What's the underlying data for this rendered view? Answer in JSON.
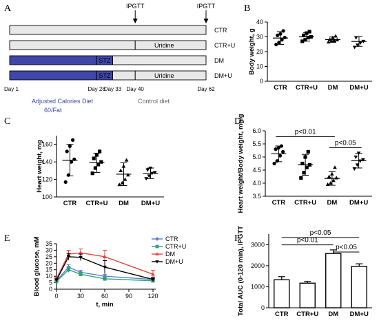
{
  "panels": {
    "A": {
      "letter": "A",
      "ipgtt_labels": [
        "IPGTT",
        "IPGTT"
      ],
      "rows": [
        {
          "name": "CTR",
          "segments": [
            {
              "from": 1,
              "to": 62,
              "color": "#e8e8e8",
              "label": ""
            }
          ]
        },
        {
          "name": "CTR+U",
          "segments": [
            {
              "from": 1,
              "to": 40,
              "color": "#e8e8e8",
              "label": ""
            },
            {
              "from": 40,
              "to": 62,
              "color": "#e8e8e8",
              "label": "Uridine"
            }
          ]
        },
        {
          "name": "DM",
          "segments": [
            {
              "from": 1,
              "to": 28,
              "color": "#3f47a8",
              "label": ""
            },
            {
              "from": 28,
              "to": 33,
              "color": "#3f47a8",
              "label": "STZ"
            },
            {
              "from": 33,
              "to": 62,
              "color": "#e8e8e8",
              "label": ""
            }
          ]
        },
        {
          "name": "DM+U",
          "segments": [
            {
              "from": 1,
              "to": 28,
              "color": "#3f47a8",
              "label": ""
            },
            {
              "from": 28,
              "to": 33,
              "color": "#3f47a8",
              "label": "STZ"
            },
            {
              "from": 33,
              "to": 40,
              "color": "#e8e8e8",
              "label": ""
            },
            {
              "from": 40,
              "to": 62,
              "color": "#e8e8e8",
              "label": "Uridine"
            }
          ]
        }
      ],
      "day_labels": [
        "Day 1",
        "Day 28",
        "Day 33",
        "Day 40",
        "Day 62"
      ],
      "diet_high": "Adjusted Calories Diet",
      "diet_high_2": "60/Fat",
      "diet_control": "Control diet"
    },
    "B": {
      "letter": "B"
    },
    "C": {
      "letter": "C"
    },
    "D": {
      "letter": "D"
    },
    "E": {
      "letter": "E"
    },
    "F": {
      "letter": "F"
    }
  },
  "chart_data": [
    {
      "id": "B",
      "type": "scatter",
      "ylabel": "Body weight, g",
      "categories": [
        "CTR",
        "CTR+U",
        "DM",
        "DM+U"
      ],
      "ylim": [
        0,
        40
      ],
      "yticks": [
        0,
        10,
        20,
        30,
        40
      ],
      "means": [
        29.2,
        30.0,
        28.1,
        26.9
      ],
      "sd": [
        4.3,
        2.9,
        1.8,
        3.3
      ],
      "points": [
        [
          24.8,
          26.2,
          28.0,
          29.5,
          31.0,
          32.0,
          34.0
        ],
        [
          27.0,
          28.0,
          29.5,
          30.0,
          31.0,
          32.5,
          33.5
        ],
        [
          26.5,
          27.0,
          27.5,
          28.0,
          28.2,
          29.5,
          30.5
        ],
        [
          23.0,
          24.5,
          26.0,
          27.0,
          29.5
        ]
      ]
    },
    {
      "id": "C",
      "type": "scatter",
      "ylabel": "Heart weight, mg",
      "categories": [
        "CTR",
        "CTR+U",
        "DM",
        "DM+U"
      ],
      "ylim": [
        100,
        170
      ],
      "yticks": [
        100,
        120,
        140,
        160
      ],
      "means": [
        142,
        139,
        126,
        127
      ],
      "sd": [
        18,
        11,
        13,
        6
      ],
      "points": [
        [
          117,
          125,
          140,
          143,
          152,
          158,
          165
        ],
        [
          127,
          133,
          137,
          140,
          144,
          148,
          152
        ],
        [
          114,
          116,
          120,
          125,
          130,
          135,
          142
        ],
        [
          121,
          124,
          127,
          128,
          131,
          133
        ]
      ]
    },
    {
      "id": "D",
      "type": "scatter",
      "ylabel": "Heart weight/Body weight, mg/g",
      "categories": [
        "CTR",
        "CTR+U",
        "DM",
        "DM+U"
      ],
      "ylim": [
        3.5,
        6.0
      ],
      "yticks": [
        3.5,
        4.0,
        4.5,
        5.0,
        5.5,
        6.0
      ],
      "means": [
        5.12,
        4.7,
        4.18,
        4.86
      ],
      "sd": [
        0.3,
        0.4,
        0.26,
        0.28
      ],
      "points": [
        [
          4.75,
          4.85,
          5.05,
          5.2,
          5.3,
          5.35,
          5.42
        ],
        [
          4.2,
          4.4,
          4.6,
          4.7,
          4.75,
          5.0,
          5.2
        ],
        [
          3.95,
          4.0,
          4.1,
          4.2,
          4.25,
          4.35,
          4.6
        ],
        [
          4.55,
          4.7,
          4.85,
          4.9,
          5.0,
          5.15
        ]
      ],
      "annotations": [
        {
          "text": "p<0.01",
          "from": 0,
          "to": 2,
          "y": 5.78
        },
        {
          "text": "p<0.05",
          "from": 2,
          "to": 3,
          "y": 5.36
        }
      ]
    },
    {
      "id": "E",
      "type": "line",
      "xlabel": "t, min",
      "ylabel": "Blood glucose, mM",
      "x": [
        0,
        15,
        30,
        60,
        120
      ],
      "xlim": [
        0,
        120
      ],
      "xticks": [
        0,
        30,
        60,
        90,
        120
      ],
      "ylim": [
        0,
        35
      ],
      "yticks": [
        0,
        5,
        10,
        15,
        20,
        25,
        30,
        35
      ],
      "series": [
        {
          "name": "CTR",
          "color": "#5b7ec9",
          "marker": "diamond",
          "values": [
            6.5,
            17.0,
            13.0,
            10.0,
            7.5
          ],
          "err": [
            1.0,
            2.0,
            1.5,
            1.5,
            1.0
          ]
        },
        {
          "name": "CTR+U",
          "color": "#2ea37a",
          "marker": "square",
          "values": [
            6.0,
            15.0,
            11.5,
            8.0,
            6.5
          ],
          "err": [
            1.0,
            2.0,
            1.5,
            1.5,
            1.0
          ]
        },
        {
          "name": "DM",
          "color": "#e8413c",
          "marker": "triangle",
          "values": [
            8.0,
            27.0,
            28.0,
            25.0,
            11.5
          ],
          "err": [
            1.5,
            3.0,
            3.0,
            5.0,
            3.0
          ]
        },
        {
          "name": "DM+U",
          "color": "#000000",
          "marker": "triangle-down",
          "values": [
            7.0,
            25.0,
            24.5,
            17.0,
            7.5
          ],
          "err": [
            1.5,
            2.5,
            2.5,
            5.0,
            1.5
          ]
        }
      ]
    },
    {
      "id": "F",
      "type": "bar",
      "ylabel": "Total AUC (0-120 min), IPGTT",
      "categories": [
        "CTR",
        "CTR+U",
        "DM",
        "DM+U"
      ],
      "values": [
        1330,
        1170,
        2580,
        1970
      ],
      "err": [
        150,
        80,
        170,
        120
      ],
      "ylim": [
        0,
        3500
      ],
      "yticks": [
        0,
        1000,
        2000,
        3000
      ],
      "annotations": [
        {
          "text": "p<0.05",
          "from": 0,
          "to": 3,
          "y": 3340
        },
        {
          "text": "p<0.01",
          "from": 0,
          "to": 2,
          "y": 2990
        },
        {
          "text": "p<0.05",
          "from": 2,
          "to": 3,
          "y": 2650
        }
      ]
    }
  ]
}
